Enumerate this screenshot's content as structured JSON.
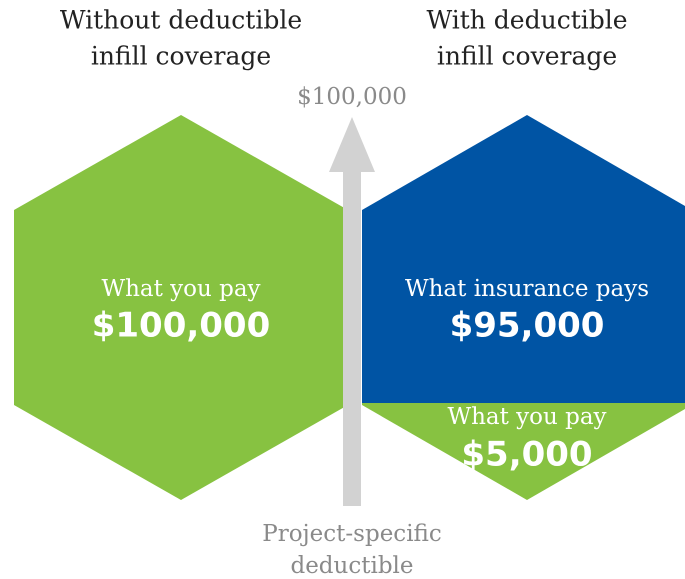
{
  "left_panel": {
    "heading": [
      "Without deductible",
      "infill coverage"
    ],
    "label": "What you pay",
    "amount": "$100,000"
  },
  "right_panel": {
    "heading": [
      "With deductible",
      "infill coverage"
    ],
    "insurance_label": "What insurance pays",
    "insurance_amount": "$95,000",
    "you_label": "What you pay",
    "you_amount": "$5,000"
  },
  "arrow": {
    "top_label": "$100,000",
    "bottom_label": [
      "Project-specific",
      "deductible"
    ]
  }
}
